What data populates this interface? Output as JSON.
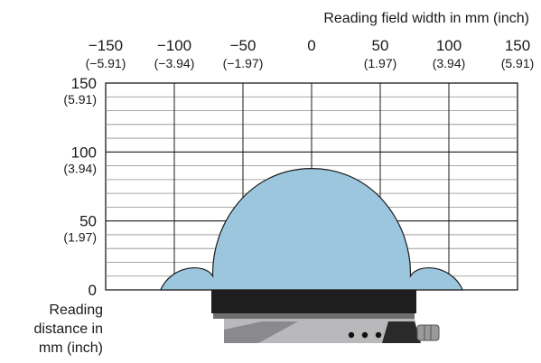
{
  "chart_data": {
    "type": "area",
    "title": "",
    "x_axis": {
      "label": "Reading field width in mm (inch)",
      "range": [
        -150,
        150
      ],
      "ticks": [
        {
          "mm": -150,
          "label": "−150",
          "inch": "(−5.91)"
        },
        {
          "mm": -100,
          "label": "−100",
          "inch": "(−3.94)"
        },
        {
          "mm": -50,
          "label": "−50",
          "inch": "(−1.97)"
        },
        {
          "mm": 0,
          "label": "0",
          "inch": ""
        },
        {
          "mm": 50,
          "label": "50",
          "inch": "(1.97)"
        },
        {
          "mm": 100,
          "label": "100",
          "inch": "(3.94)"
        },
        {
          "mm": 150,
          "label": "150",
          "inch": "(5.91)"
        }
      ]
    },
    "y_axis": {
      "label_lines": [
        "Reading",
        "distance in",
        "mm (inch)"
      ],
      "range": [
        0,
        150
      ],
      "ticks": [
        {
          "mm": 150,
          "label": "150",
          "inch": "(5.91)"
        },
        {
          "mm": 100,
          "label": "100",
          "inch": "(3.94)"
        },
        {
          "mm": 50,
          "label": "50",
          "inch": "(1.97)"
        },
        {
          "mm": 0,
          "label": "0",
          "inch": ""
        }
      ]
    },
    "grid": {
      "x_step_mm": 50,
      "y_major_mm": 50,
      "y_minor_mm": 10
    },
    "field": {
      "fill_color": "#9cc6dd",
      "outline_color": "#1a1a1a",
      "main_lobe": {
        "x_min_mm": -72,
        "x_max_mm": 72,
        "peak_distance_mm": 88
      },
      "side_lobes": [
        {
          "x_min_mm": -110,
          "x_max_mm": -72,
          "peak_distance_mm": 18
        },
        {
          "x_min_mm": 72,
          "x_max_mm": 110,
          "peak_distance_mm": 18
        }
      ]
    },
    "device": {
      "body_color": "#1e1e1e",
      "housing_color": "#b9b9bb",
      "connector_color": "#9a9a9a"
    }
  }
}
